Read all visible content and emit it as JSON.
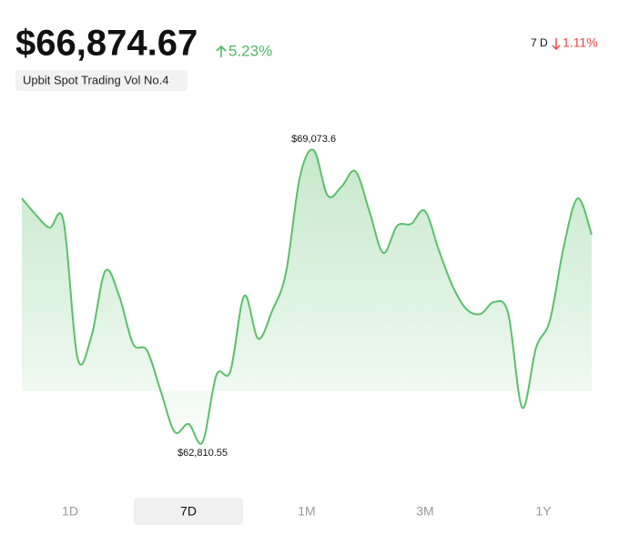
{
  "header": {
    "price": "$66,874.67",
    "change": "5.23%",
    "period": "7 D",
    "period_change": "1.11%",
    "tag": "Upbit Spot Trading Vol No.4"
  },
  "chart_data": {
    "type": "line",
    "color": "#5cbf6b",
    "values": [
      68040,
      67690,
      67410,
      67550,
      64620,
      65070,
      66480,
      65950,
      64920,
      64780,
      63900,
      63030,
      63200,
      62810.55,
      64250,
      64330,
      65950,
      65030,
      65620,
      66440,
      68490,
      69073.6,
      68100,
      68290,
      68620,
      67770,
      66870,
      67450,
      67490,
      67770,
      66930,
      66150,
      65660,
      65560,
      65820,
      65560,
      63550,
      64840,
      65430,
      67020,
      68040,
      67260
    ],
    "value_labels": [
      null,
      null,
      null,
      null,
      null,
      null,
      null,
      null,
      null,
      null,
      null,
      null,
      null,
      "$62,810.55",
      null,
      null,
      null,
      null,
      null,
      null,
      null,
      "$69,073.6",
      null,
      null,
      null,
      null,
      null,
      null,
      null,
      null,
      null,
      null,
      null,
      null,
      null,
      null,
      null,
      null,
      null,
      null,
      null,
      null
    ]
  },
  "tabs": [
    "1D",
    "7D",
    "1M",
    "3M",
    "1Y"
  ],
  "selected_tab": 1
}
